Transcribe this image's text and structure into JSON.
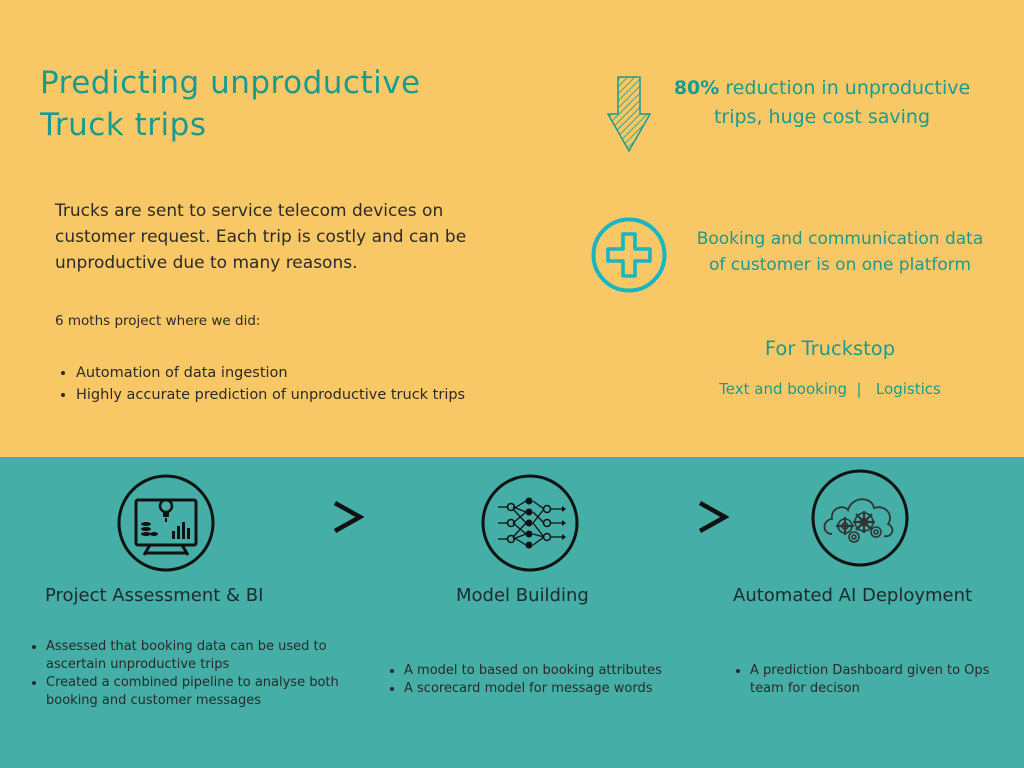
{
  "header": {
    "title_line1": "Predicting unproductive",
    "title_line2": "Truck trips"
  },
  "description": "Trucks are sent to service telecom devices on customer request. Each trip is costly and can be unproductive due to many reasons.",
  "project_intro": "6 moths project where we did:",
  "project_bullets": [
    "Automation of data ingestion",
    "Highly accurate prediction of unproductive truck trips"
  ],
  "result": {
    "stat_bold": "80%",
    "stat_rest": " reduction in unproductive trips, huge cost saving",
    "benefit": "Booking and communication data of customer is on one platform"
  },
  "client": {
    "label": "For Truckstop",
    "tags": "Text and booking  |   Logistics"
  },
  "steps": [
    {
      "title": "Project Assessment & BI",
      "bullets": [
        "Assessed that booking data can be used to ascertain unproductive trips",
        "Created a combined pipeline to analyse both booking and customer messages"
      ]
    },
    {
      "title": "Model Building",
      "bullets": [
        "A model to based on booking attributes",
        "A scorecard model for message words"
      ]
    },
    {
      "title": "Automated AI Deployment",
      "bullets": [
        " A prediction Dashboard given to Ops team for decison"
      ]
    }
  ],
  "icons": {
    "result_arrow": "arrow-down-icon",
    "benefit": "plus-circle-icon",
    "step1": "dashboard-bulb-icon",
    "step2": "neural-network-icon",
    "step3": "cloud-gears-icon",
    "separator": "chevron-right-icon"
  },
  "colors": {
    "top_background": "#f9c866",
    "bottom_background": "#45aea7",
    "accent": "#1a9b90",
    "plus_icon": "#16b6c4"
  }
}
